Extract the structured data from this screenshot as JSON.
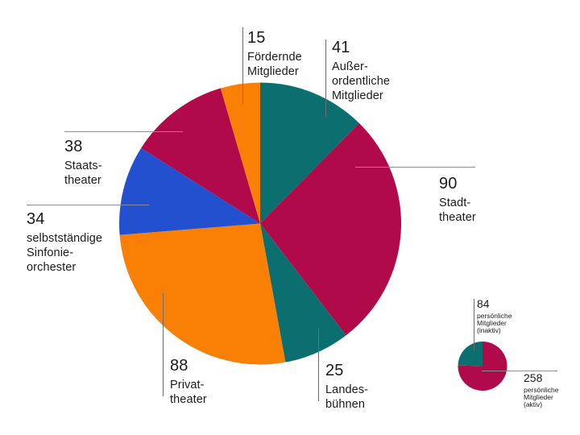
{
  "background_color": "#ffffff",
  "text_color": "#1b1b1b",
  "leader_line_color": "#6e6e6e",
  "chart_data": [
    {
      "type": "pie",
      "id": "main-pie",
      "total": 331,
      "start_angle_deg": 0,
      "direction": "clockwise",
      "legend": "none",
      "segments": [
        {
          "id": "ausserordentliche-mitglieder",
          "label": "Außerordentliche Mitglieder",
          "value": 41,
          "color": "#0b6f70"
        },
        {
          "id": "stadttheater",
          "label": "Stadttheater",
          "value": 90,
          "color": "#b00a4b"
        },
        {
          "id": "landesbuehnen",
          "label": "Landesbühnen",
          "value": 25,
          "color": "#0b6f70"
        },
        {
          "id": "privattheater",
          "label": "Privattheater",
          "value": 88,
          "color": "#fa8005"
        },
        {
          "id": "sinfonieorchester",
          "label": "selbstständige Sinfonieorchester",
          "value": 34,
          "color": "#2350cf"
        },
        {
          "id": "staatstheater",
          "label": "Staatstheater",
          "value": 38,
          "color": "#b00a4b"
        },
        {
          "id": "foerdernde-mitglieder",
          "label": "Fördernde Mitglieder",
          "value": 15,
          "color": "#fa8005"
        }
      ]
    },
    {
      "type": "pie",
      "id": "small-pie",
      "total": 342,
      "start_angle_deg": 0,
      "direction": "clockwise",
      "legend": "none",
      "segments": [
        {
          "id": "persoenliche-mitglieder-aktiv",
          "label": "persönliche Mitglieder (aktiv)",
          "value": 258,
          "color": "#b00a4b"
        },
        {
          "id": "persoenliche-mitglieder-inaktiv",
          "label": "persönliche Mitglieder (inaktiv)",
          "value": 84,
          "color": "#0b6f70"
        }
      ]
    }
  ],
  "callouts": {
    "foerdernde": {
      "lines": [
        "Fördernde",
        "Mitglieder"
      ]
    },
    "ausserordentliche": {
      "lines": [
        "Außer-",
        "ordentliche",
        "Mitglieder"
      ]
    },
    "stadttheater": {
      "lines": [
        "Stadt-",
        "theater"
      ]
    },
    "staatstheater": {
      "lines": [
        "Staats-",
        "theater"
      ]
    },
    "sinfonieorchester": {
      "lines": [
        "selbstständige",
        "Sinfonie-",
        "orchester"
      ]
    },
    "privattheater": {
      "lines": [
        "Privat-",
        "theater"
      ]
    },
    "landesbuehnen": {
      "lines": [
        "Landes-",
        "bühnen"
      ]
    },
    "persoenliche_inaktiv": {
      "lines": [
        "persönliche",
        "Mitglieder",
        "(inaktiv)"
      ]
    },
    "persoenliche_aktiv": {
      "lines": [
        "persönliche",
        "Mitglieder",
        "(aktiv)"
      ]
    }
  }
}
